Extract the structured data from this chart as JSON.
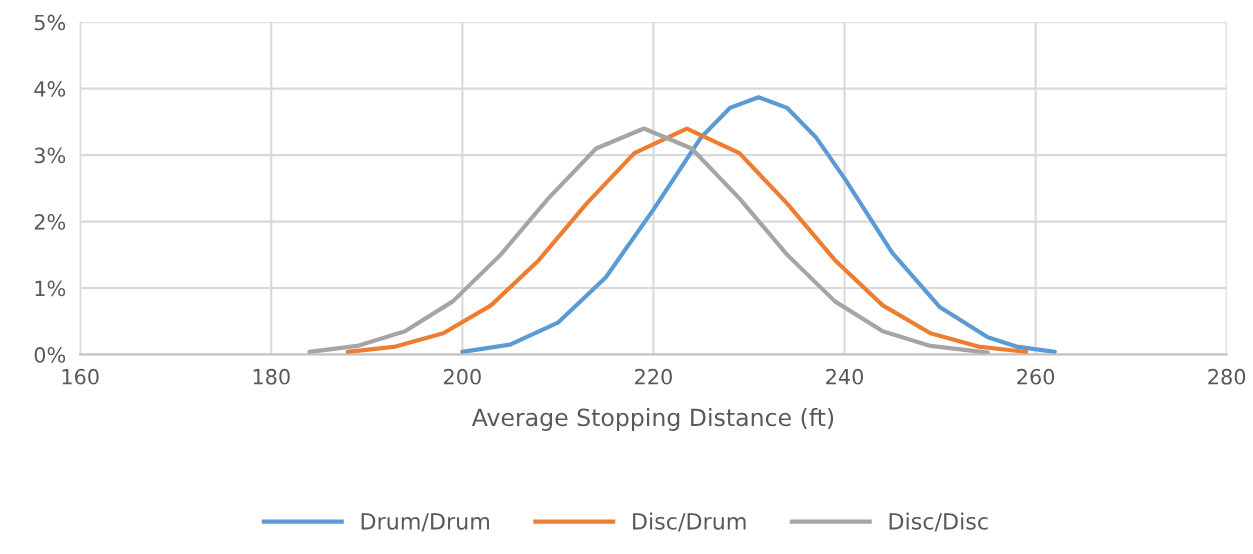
{
  "chart_data": {
    "type": "line",
    "xlabel": "Average Stopping Distance (ft)",
    "xlim": [
      160,
      280
    ],
    "xticks": [
      160,
      180,
      200,
      220,
      240,
      260,
      280
    ],
    "ylim": [
      0,
      5
    ],
    "yticks": [
      {
        "value": 0,
        "label": "0%"
      },
      {
        "value": 1,
        "label": "1%"
      },
      {
        "value": 2,
        "label": "2%"
      },
      {
        "value": 3,
        "label": "3%"
      },
      {
        "value": 4,
        "label": "4%"
      },
      {
        "value": 5,
        "label": "5%"
      }
    ],
    "grid": true,
    "legend": "bottom",
    "marker": "none",
    "line_style": "solid",
    "series": [
      {
        "name": "Drum/Drum",
        "color": "#5b9bd5",
        "x": [
          200,
          205,
          210,
          215,
          220,
          225,
          228,
          231,
          234,
          237,
          240,
          245,
          250,
          255,
          258,
          262
        ],
        "values": [
          0.04,
          0.15,
          0.48,
          1.16,
          2.18,
          3.27,
          3.71,
          3.87,
          3.71,
          3.27,
          2.65,
          1.53,
          0.71,
          0.26,
          0.12,
          0.04
        ]
      },
      {
        "name": "Disc/Drum",
        "color": "#ed7d31",
        "x": [
          188,
          193,
          198,
          203,
          208,
          213,
          218,
          223.5,
          229,
          234,
          239,
          244,
          249,
          254,
          259
        ],
        "values": [
          0.04,
          0.12,
          0.32,
          0.74,
          1.42,
          2.27,
          3.03,
          3.4,
          3.03,
          2.27,
          1.42,
          0.74,
          0.32,
          0.12,
          0.04
        ]
      },
      {
        "name": "Disc/Disc",
        "color": "#a5a5a5",
        "x": [
          184,
          189,
          194,
          199,
          204,
          209,
          214,
          219,
          224,
          229,
          234,
          239,
          244,
          249,
          255
        ],
        "values": [
          0.04,
          0.13,
          0.35,
          0.8,
          1.5,
          2.35,
          3.1,
          3.4,
          3.1,
          2.35,
          1.5,
          0.8,
          0.35,
          0.13,
          0.03
        ]
      }
    ]
  }
}
